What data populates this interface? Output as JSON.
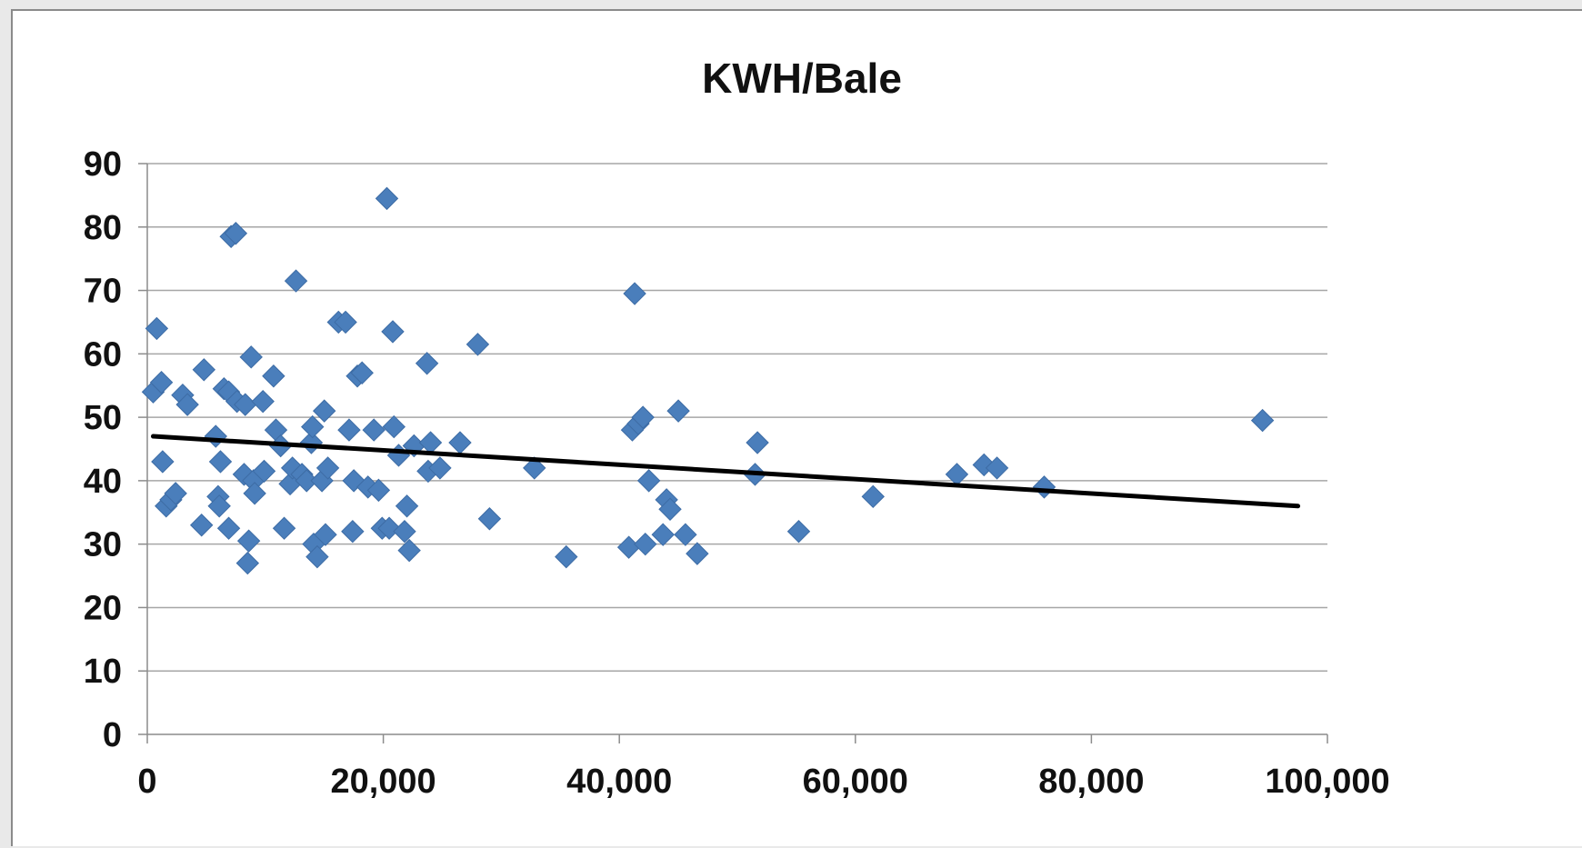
{
  "chart_data": {
    "type": "scatter",
    "title": "KWH/Bale",
    "xlabel": "",
    "ylabel": "",
    "xlim": [
      0,
      100000
    ],
    "ylim": [
      0,
      90
    ],
    "x_ticks": [
      0,
      20000,
      40000,
      60000,
      80000,
      100000
    ],
    "x_tick_labels": [
      "0",
      "20,000",
      "40,000",
      "60,000",
      "80,000",
      "100,000"
    ],
    "y_ticks": [
      0,
      10,
      20,
      30,
      40,
      50,
      60,
      70,
      80,
      90
    ],
    "y_tick_labels": [
      "0",
      "10",
      "20",
      "30",
      "40",
      "50",
      "60",
      "70",
      "80",
      "90"
    ],
    "grid": "horizontal",
    "marker_color": "#4a7ebb",
    "trendline": {
      "type": "linear",
      "color": "#000000",
      "x": [
        500,
        97500
      ],
      "y": [
        47,
        36
      ]
    },
    "points": [
      [
        500,
        54
      ],
      [
        800,
        64
      ],
      [
        1200,
        55.5
      ],
      [
        1300,
        43
      ],
      [
        1600,
        36
      ],
      [
        2000,
        37
      ],
      [
        2400,
        38
      ],
      [
        3000,
        53.5
      ],
      [
        3400,
        52
      ],
      [
        4600,
        33
      ],
      [
        4800,
        57.5
      ],
      [
        5800,
        47
      ],
      [
        6000,
        37.5
      ],
      [
        6100,
        36
      ],
      [
        6200,
        43
      ],
      [
        6500,
        54.5
      ],
      [
        6900,
        32.5
      ],
      [
        6900,
        54
      ],
      [
        7100,
        78.5
      ],
      [
        7500,
        79
      ],
      [
        7600,
        52.5
      ],
      [
        8200,
        41
      ],
      [
        8300,
        52
      ],
      [
        8500,
        27
      ],
      [
        8600,
        30.5
      ],
      [
        8800,
        59.5
      ],
      [
        9000,
        40
      ],
      [
        9100,
        38
      ],
      [
        9800,
        52.5
      ],
      [
        9900,
        41.5
      ],
      [
        10700,
        56.5
      ],
      [
        10900,
        48
      ],
      [
        11300,
        45.5
      ],
      [
        11600,
        32.5
      ],
      [
        12100,
        39.5
      ],
      [
        12300,
        42
      ],
      [
        12600,
        71.5
      ],
      [
        13100,
        41
      ],
      [
        13500,
        40
      ],
      [
        13900,
        46
      ],
      [
        14000,
        48.5
      ],
      [
        14100,
        30
      ],
      [
        14400,
        28
      ],
      [
        14800,
        40
      ],
      [
        15000,
        51
      ],
      [
        15100,
        31.5
      ],
      [
        15300,
        42
      ],
      [
        16200,
        65
      ],
      [
        16800,
        65
      ],
      [
        17100,
        48
      ],
      [
        17400,
        32
      ],
      [
        17500,
        40
      ],
      [
        17800,
        56.5
      ],
      [
        18200,
        57
      ],
      [
        18700,
        39
      ],
      [
        19200,
        48
      ],
      [
        19600,
        38.5
      ],
      [
        19900,
        32.5
      ],
      [
        20300,
        84.5
      ],
      [
        20500,
        32.5
      ],
      [
        20800,
        63.5
      ],
      [
        20900,
        48.5
      ],
      [
        21300,
        44
      ],
      [
        21800,
        32
      ],
      [
        22000,
        36
      ],
      [
        22200,
        29
      ],
      [
        22600,
        45.5
      ],
      [
        23700,
        58.5
      ],
      [
        23800,
        41.5
      ],
      [
        24000,
        46
      ],
      [
        24800,
        42
      ],
      [
        26500,
        46
      ],
      [
        28000,
        61.5
      ],
      [
        29000,
        34
      ],
      [
        32800,
        42
      ],
      [
        35500,
        28
      ],
      [
        40800,
        29.5
      ],
      [
        41100,
        48
      ],
      [
        41300,
        69.5
      ],
      [
        41600,
        49
      ],
      [
        42000,
        50
      ],
      [
        42200,
        30
      ],
      [
        42500,
        40
      ],
      [
        43700,
        31.5
      ],
      [
        44000,
        37
      ],
      [
        44300,
        35.5
      ],
      [
        45000,
        51
      ],
      [
        45600,
        31.5
      ],
      [
        46600,
        28.5
      ],
      [
        51500,
        41
      ],
      [
        51700,
        46
      ],
      [
        55200,
        32
      ],
      [
        61500,
        37.5
      ],
      [
        68600,
        41
      ],
      [
        70900,
        42.5
      ],
      [
        72000,
        42
      ],
      [
        76000,
        39
      ],
      [
        94500,
        49.5
      ]
    ]
  }
}
